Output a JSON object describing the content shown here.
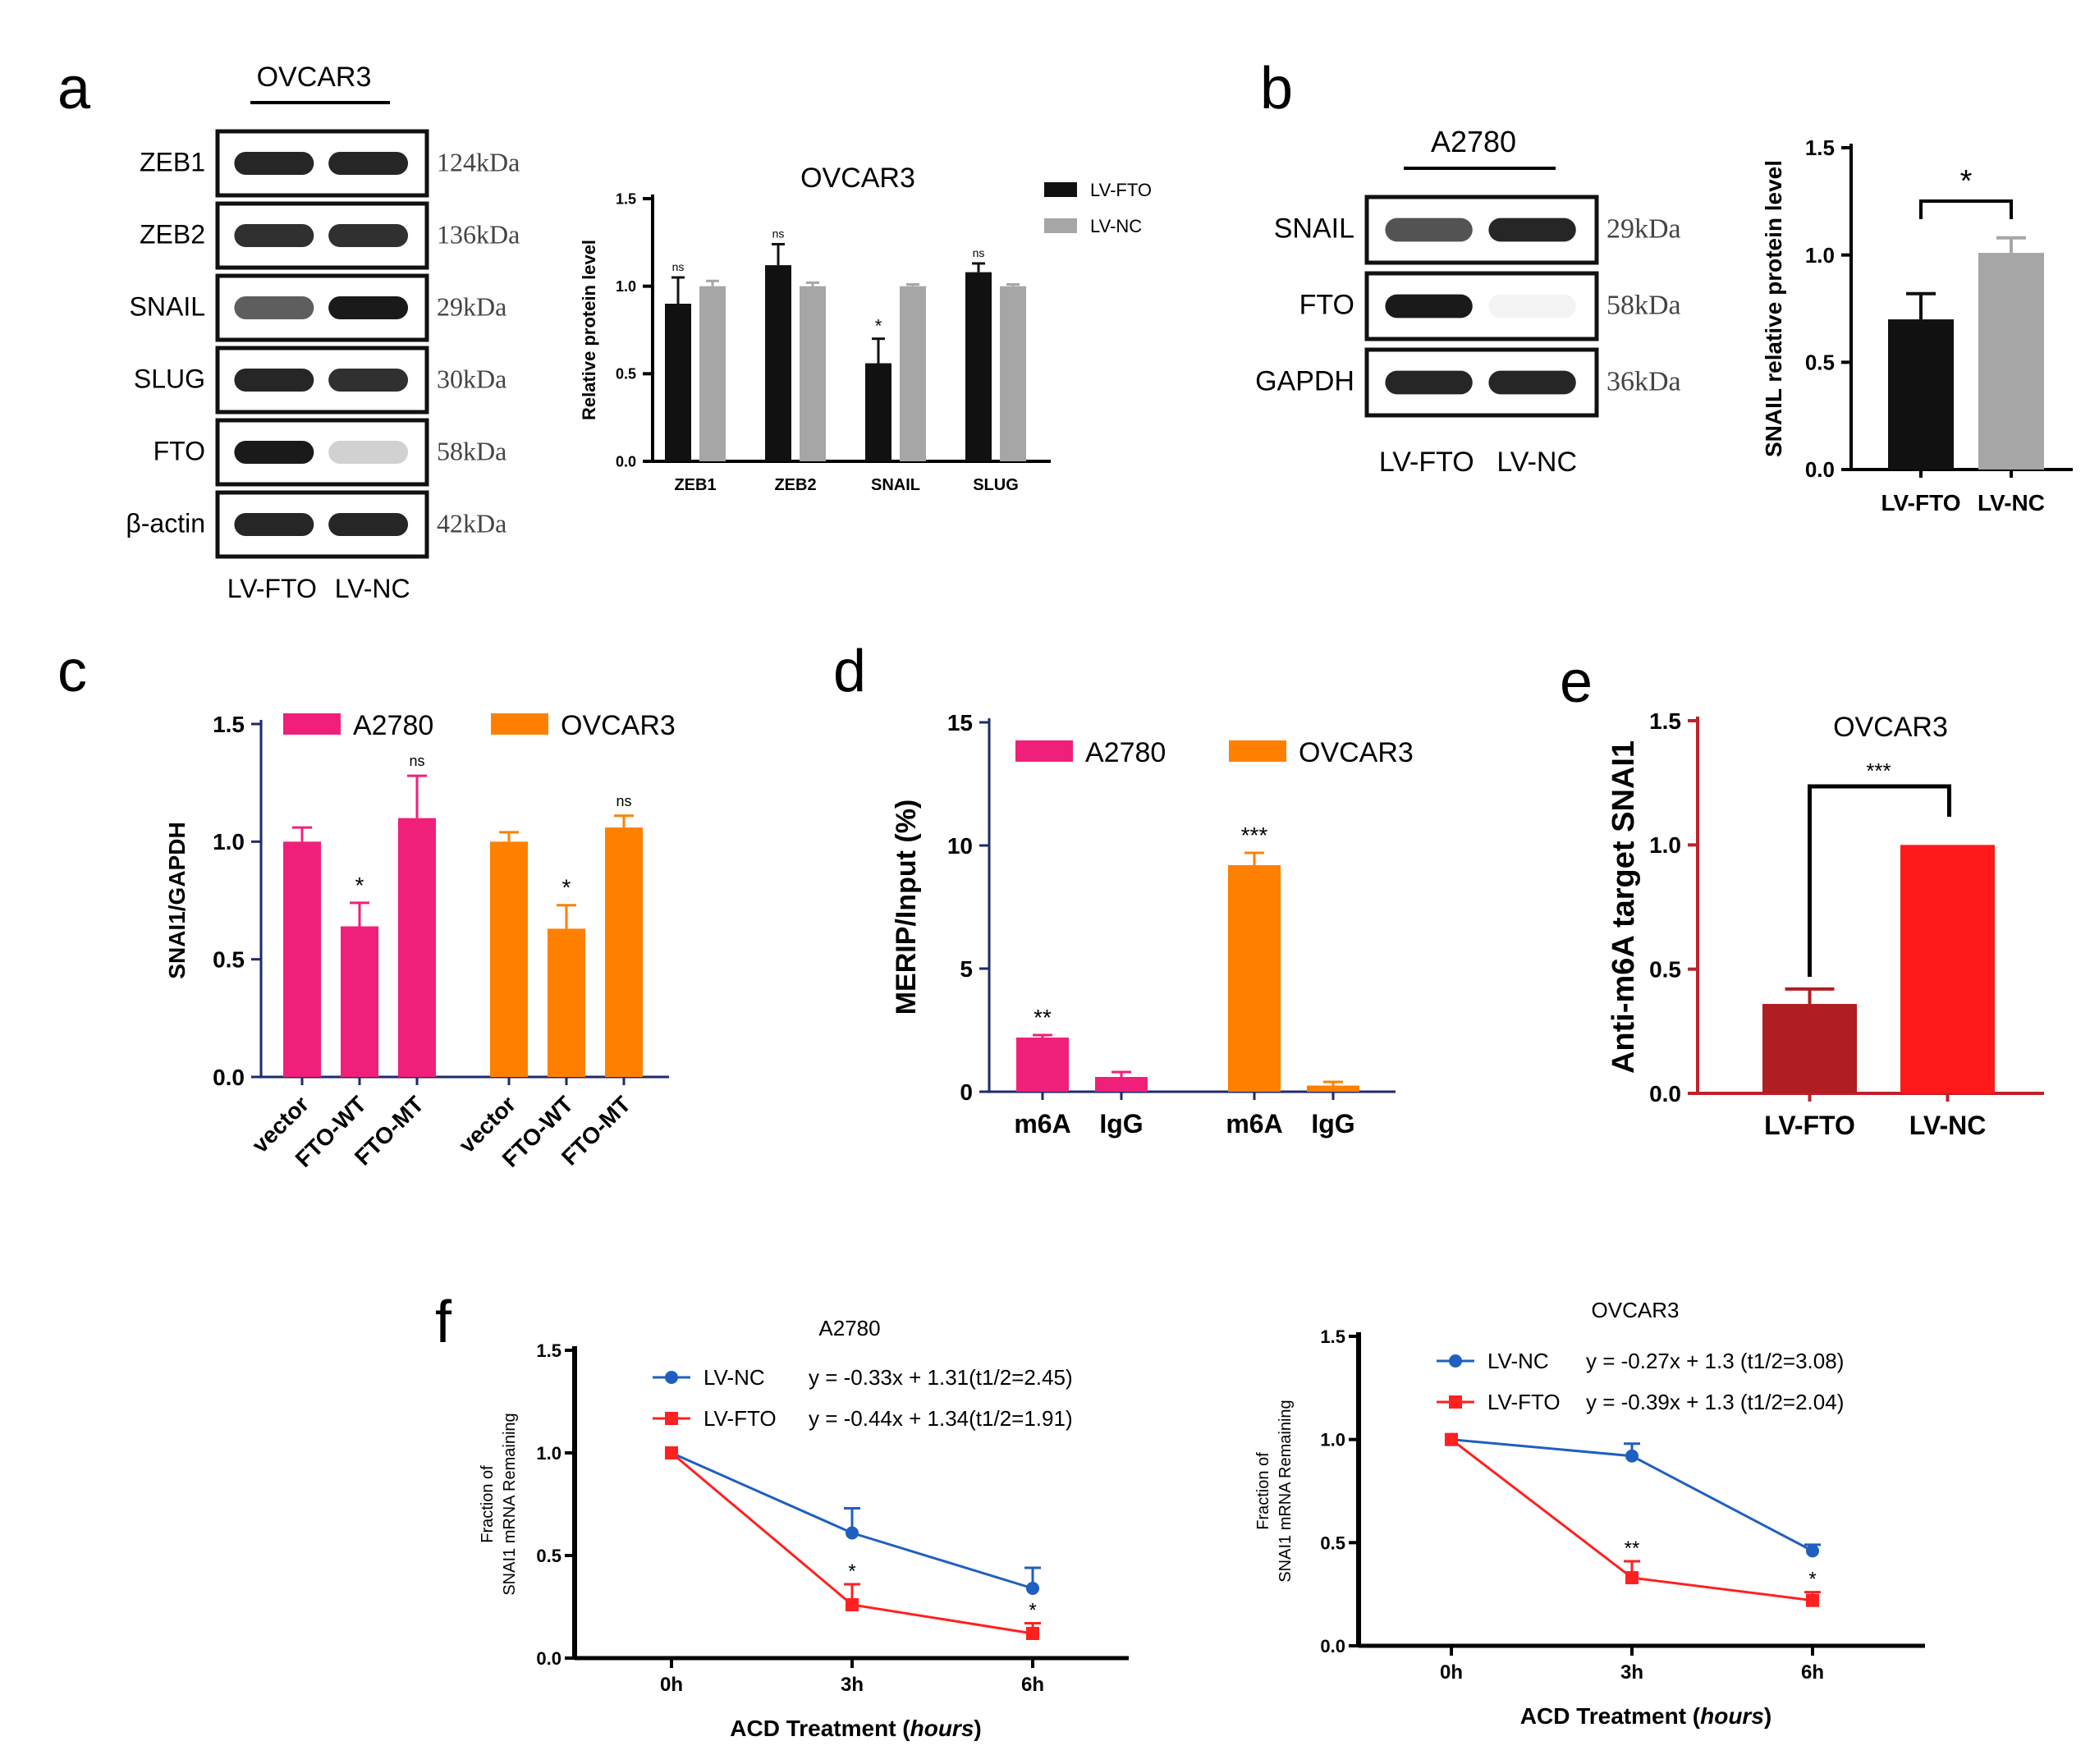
{
  "panels": {
    "a": {
      "label": "a",
      "blot": {
        "cell_line": "OVCAR3",
        "rows": [
          {
            "protein": "ZEB1",
            "size": "124kDa",
            "intensity": [
              0.95,
              0.95
            ]
          },
          {
            "protein": "ZEB2",
            "size": "136kDa",
            "intensity": [
              0.9,
              0.9
            ]
          },
          {
            "protein": "SNAIL",
            "size": "29kDa",
            "intensity": [
              0.7,
              1.0
            ]
          },
          {
            "protein": "SLUG",
            "size": "30kDa",
            "intensity": [
              0.95,
              0.9
            ]
          },
          {
            "protein": "FTO",
            "size": "58kDa",
            "intensity": [
              1.0,
              0.2
            ]
          },
          {
            "protein": "β-actin",
            "size": "42kDa",
            "intensity": [
              0.95,
              0.95
            ]
          }
        ],
        "lanes": [
          "LV-FTO",
          "LV-NC"
        ]
      }
    },
    "b": {
      "label": "b",
      "blot": {
        "cell_line": "A2780",
        "rows": [
          {
            "protein": "SNAIL",
            "size": "29kDa",
            "intensity": [
              0.75,
              0.95
            ]
          },
          {
            "protein": "FTO",
            "size": "58kDa",
            "intensity": [
              1.0,
              0.05
            ]
          },
          {
            "protein": "GAPDH",
            "size": "36kDa",
            "intensity": [
              0.95,
              0.95
            ]
          }
        ],
        "lanes": [
          "LV-FTO",
          "LV-NC"
        ]
      }
    },
    "c": {
      "label": "c"
    },
    "d": {
      "label": "d"
    },
    "e": {
      "label": "e"
    },
    "f": {
      "label": "f"
    }
  },
  "colors": {
    "black_bar": "#111111",
    "grey_bar": "#a6a6a6",
    "pink": "#f0207a",
    "orange": "#ff8000",
    "dark_red": "#b01e23",
    "red": "#ff1a1a",
    "blue_line": "#1f5fbf",
    "red_line": "#ff2020",
    "axis_navy": "#1d2a6b",
    "axis_red": "#c0202a"
  },
  "chart_data": [
    {
      "id": "a_bar",
      "type": "bar",
      "title": "OVCAR3",
      "ylabel": "Relative protein level",
      "ylim": [
        0,
        1.5
      ],
      "yticks": [
        "0.0",
        "0.5",
        "1.0",
        "1.5"
      ],
      "categories": [
        "ZEB1",
        "ZEB2",
        "SNAIL",
        "SLUG"
      ],
      "series": [
        {
          "name": "LV-FTO",
          "values": [
            0.9,
            1.12,
            0.56,
            1.08
          ],
          "errors": [
            0.15,
            0.12,
            0.14,
            0.05
          ]
        },
        {
          "name": "LV-NC",
          "values": [
            1.0,
            1.0,
            1.0,
            1.0
          ],
          "errors": [
            0.03,
            0.02,
            0.01,
            0.01
          ]
        }
      ],
      "annotations": [
        "ns",
        "ns",
        "*",
        "ns"
      ],
      "legend_position": "top-right"
    },
    {
      "id": "b_bar",
      "type": "bar",
      "ylabel": "SNAIL relative protein level",
      "ylim": [
        0,
        1.5
      ],
      "yticks": [
        "0.0",
        "0.5",
        "1.0",
        "1.5"
      ],
      "categories": [
        "LV-FTO",
        "LV-NC"
      ],
      "values": [
        0.7,
        1.01
      ],
      "errors": [
        0.12,
        0.07
      ],
      "significance": "*"
    },
    {
      "id": "c_bar",
      "type": "bar",
      "ylabel": "SNAI1/GAPDH",
      "ylim": [
        0,
        1.5
      ],
      "yticks": [
        "0.0",
        "0.5",
        "1.0",
        "1.5"
      ],
      "groups": [
        {
          "name": "A2780",
          "categories": [
            "vector",
            "FTO-WT",
            "FTO-MT"
          ],
          "values": [
            1.0,
            0.64,
            1.1
          ],
          "errors": [
            0.06,
            0.1,
            0.18
          ],
          "annotations": [
            "",
            "*",
            "ns"
          ]
        },
        {
          "name": "OVCAR3",
          "categories": [
            "vector",
            "FTO-WT",
            "FTO-MT"
          ],
          "values": [
            1.0,
            0.63,
            1.06
          ],
          "errors": [
            0.04,
            0.1,
            0.05
          ],
          "annotations": [
            "",
            "*",
            "ns"
          ]
        }
      ],
      "legend_position": "top"
    },
    {
      "id": "d_bar",
      "type": "bar",
      "ylabel": "MERIP/Input (%)",
      "ylim": [
        0,
        15
      ],
      "yticks": [
        "0",
        "5",
        "10",
        "15"
      ],
      "groups": [
        {
          "name": "A2780",
          "categories": [
            "m6A",
            "IgG"
          ],
          "values": [
            2.2,
            0.6
          ],
          "errors": [
            0.1,
            0.2
          ],
          "annotations": [
            "**",
            ""
          ]
        },
        {
          "name": "OVCAR3",
          "categories": [
            "m6A",
            "IgG"
          ],
          "values": [
            9.2,
            0.25
          ],
          "errors": [
            0.5,
            0.15
          ],
          "annotations": [
            "***",
            ""
          ]
        }
      ],
      "legend_position": "top"
    },
    {
      "id": "e_bar",
      "type": "bar",
      "title": "OVCAR3",
      "ylabel": "Anti-m6A target SNAI1",
      "ylim": [
        0,
        1.5
      ],
      "yticks": [
        "0.0",
        "0.5",
        "1.0",
        "1.5"
      ],
      "categories": [
        "LV-FTO",
        "LV-NC"
      ],
      "values": [
        0.36,
        1.0
      ],
      "errors": [
        0.06,
        0.0
      ],
      "significance": "***"
    },
    {
      "id": "f1_line",
      "type": "line",
      "title": "A2780",
      "xlabel": "ACD Treatment (hours)",
      "ylabel": "Fraction of SNAI1 mRNA Remaining",
      "ylim": [
        0,
        1.5
      ],
      "yticks": [
        "0.0",
        "0.5",
        "1.0",
        "1.5"
      ],
      "x": [
        "0h",
        "3h",
        "6h"
      ],
      "series": [
        {
          "name": "LV-NC",
          "equation": "y = -0.33x + 1.31(t1/2=2.45)",
          "values": [
            1.0,
            0.61,
            0.34
          ],
          "errors": [
            0.0,
            0.12,
            0.1
          ]
        },
        {
          "name": "LV-FTO",
          "equation": "y = -0.44x + 1.34(t1/2=1.91)",
          "values": [
            1.0,
            0.26,
            0.12
          ],
          "errors": [
            0.0,
            0.1,
            0.05
          ]
        }
      ],
      "annotations": [
        "",
        "*",
        "*"
      ]
    },
    {
      "id": "f2_line",
      "type": "line",
      "title": "OVCAR3",
      "xlabel": "ACD Treatment (hours)",
      "ylabel": "Fraction of SNAI1 mRNA Remaining",
      "ylim": [
        0,
        1.5
      ],
      "yticks": [
        "0.0",
        "0.5",
        "1.0",
        "1.5"
      ],
      "x": [
        "0h",
        "3h",
        "6h"
      ],
      "series": [
        {
          "name": "LV-NC",
          "equation": "y = -0.27x + 1.3 (t1/2=3.08)",
          "values": [
            1.0,
            0.92,
            0.46
          ],
          "errors": [
            0.0,
            0.06,
            0.03
          ]
        },
        {
          "name": "LV-FTO",
          "equation": "y = -0.39x + 1.3 (t1/2=2.04)",
          "values": [
            1.0,
            0.33,
            0.22
          ],
          "errors": [
            0.0,
            0.08,
            0.04
          ]
        }
      ],
      "annotations": [
        "",
        "**",
        "*"
      ]
    }
  ]
}
